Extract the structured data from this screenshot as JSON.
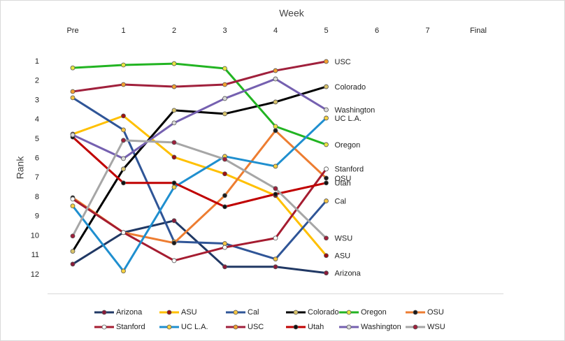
{
  "chart_data": {
    "type": "line",
    "title": "Week",
    "y_label": "Rank",
    "categories": [
      "Pre",
      "1",
      "2",
      "3",
      "4",
      "5",
      "6",
      "7",
      "Final"
    ],
    "ylim": [
      13,
      0
    ],
    "yticks": [
      1,
      2,
      3,
      4,
      5,
      6,
      7,
      8,
      9,
      10,
      11,
      12
    ],
    "legend": "bottom",
    "end_labels": true,
    "series": [
      {
        "name": "Arizona",
        "color": "#203864",
        "marker_color": "#8b1a3a",
        "values": [
          11.46,
          9.83,
          9.22,
          11.6,
          11.6,
          11.92,
          null,
          null,
          null
        ]
      },
      {
        "name": "ASU",
        "color": "#ffc000",
        "marker_color": "#a01010",
        "values": [
          4.75,
          3.81,
          5.94,
          6.8,
          7.92,
          11.02,
          null,
          null,
          null
        ]
      },
      {
        "name": "Cal",
        "color": "#2f5597",
        "marker_color": "#f5c542",
        "values": [
          2.87,
          4.53,
          10.3,
          10.4,
          11.2,
          8.2,
          null,
          null,
          null
        ]
      },
      {
        "name": "Colorado",
        "color": "#000000",
        "marker_color": "#d9c36a",
        "values": [
          10.8,
          6.55,
          3.52,
          3.7,
          3.09,
          2.3,
          null,
          null,
          null
        ]
      },
      {
        "name": "Oregon",
        "color": "#22b422",
        "marker_color": "#e8e840",
        "values": [
          1.33,
          1.18,
          1.11,
          1.36,
          4.35,
          5.29,
          null,
          null,
          null
        ]
      },
      {
        "name": "OSU",
        "color": "#ed7d31",
        "marker_color": "#1a1a1a",
        "values": [
          8.03,
          9.83,
          10.37,
          7.92,
          4.57,
          7.02,
          null,
          null,
          null
        ]
      },
      {
        "name": "Stanford",
        "color": "#a51c30",
        "marker_color": "#ffffff",
        "values": [
          8.1,
          9.83,
          11.28,
          10.6,
          10.12,
          6.55,
          null,
          null,
          null
        ]
      },
      {
        "name": "UC L.A.",
        "color": "#1f8fcf",
        "marker_color": "#f5d142",
        "values": [
          8.46,
          11.82,
          7.49,
          5.9,
          6.41,
          3.92,
          null,
          null,
          null
        ]
      },
      {
        "name": "USC",
        "color": "#a0203c",
        "marker_color": "#f5a030",
        "values": [
          2.55,
          2.19,
          2.3,
          2.19,
          1.47,
          1.0,
          null,
          null,
          null
        ]
      },
      {
        "name": "Utah",
        "color": "#c00000",
        "marker_color": "#111111",
        "values": [
          4.9,
          7.27,
          7.27,
          8.5,
          7.85,
          7.27,
          null,
          null,
          null
        ]
      },
      {
        "name": "Washington",
        "color": "#7560b0",
        "marker_color": "#d9d9d9",
        "values": [
          4.79,
          6.01,
          4.17,
          2.91,
          1.9,
          3.49,
          null,
          null,
          null
        ]
      },
      {
        "name": "WSU",
        "color": "#a6a6a6",
        "marker_color": "#a0203c",
        "values": [
          10.01,
          5.07,
          5.18,
          6.05,
          7.56,
          10.12,
          null,
          null,
          null
        ]
      }
    ]
  }
}
